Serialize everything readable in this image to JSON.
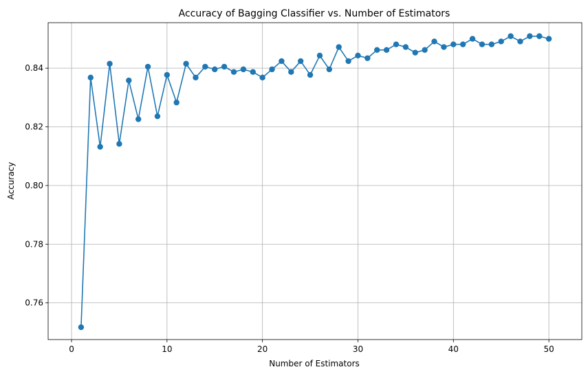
{
  "chart_data": {
    "type": "line",
    "title": "Accuracy of Bagging Classifier vs. Number of Estimators",
    "xlabel": "Number of Estimators",
    "ylabel": "Accuracy",
    "xlim": [
      -2.45,
      53.45
    ],
    "ylim": [
      0.7475,
      0.8555
    ],
    "xticks": [
      0,
      10,
      20,
      30,
      40,
      50
    ],
    "yticks": [
      0.76,
      0.78,
      0.8,
      0.82,
      0.84
    ],
    "ytick_labels": [
      "0.76",
      "0.78",
      "0.80",
      "0.82",
      "0.84"
    ],
    "grid": true,
    "marker": "circle",
    "colors": {
      "series": "#1f77b4",
      "grid": "#b0b0b0",
      "axes": "#000000"
    },
    "series": [
      {
        "x": [
          1,
          2,
          3,
          4,
          5,
          6,
          7,
          8,
          9,
          10,
          11,
          12,
          13,
          14,
          15,
          16,
          17,
          18,
          19,
          20,
          21,
          22,
          23,
          24,
          25,
          26,
          27,
          28,
          29,
          30,
          31,
          32,
          33,
          34,
          35,
          36,
          37,
          38,
          39,
          40,
          41,
          42,
          43,
          44,
          45,
          46,
          47,
          48,
          49,
          50
        ],
        "values": [
          0.7517,
          0.8368,
          0.8132,
          0.8415,
          0.8142,
          0.8358,
          0.8226,
          0.8405,
          0.8236,
          0.8377,
          0.8283,
          0.8415,
          0.8368,
          0.8405,
          0.8396,
          0.8405,
          0.8387,
          0.8396,
          0.8387,
          0.8368,
          0.8396,
          0.8424,
          0.8387,
          0.8424,
          0.8377,
          0.8443,
          0.8396,
          0.8472,
          0.8424,
          0.8443,
          0.8434,
          0.8462,
          0.8462,
          0.8481,
          0.8472,
          0.8453,
          0.8462,
          0.8491,
          0.8472,
          0.8481,
          0.8481,
          0.85,
          0.8481,
          0.8481,
          0.8491,
          0.8509,
          0.8491,
          0.8509,
          0.8509,
          0.85
        ]
      }
    ]
  }
}
